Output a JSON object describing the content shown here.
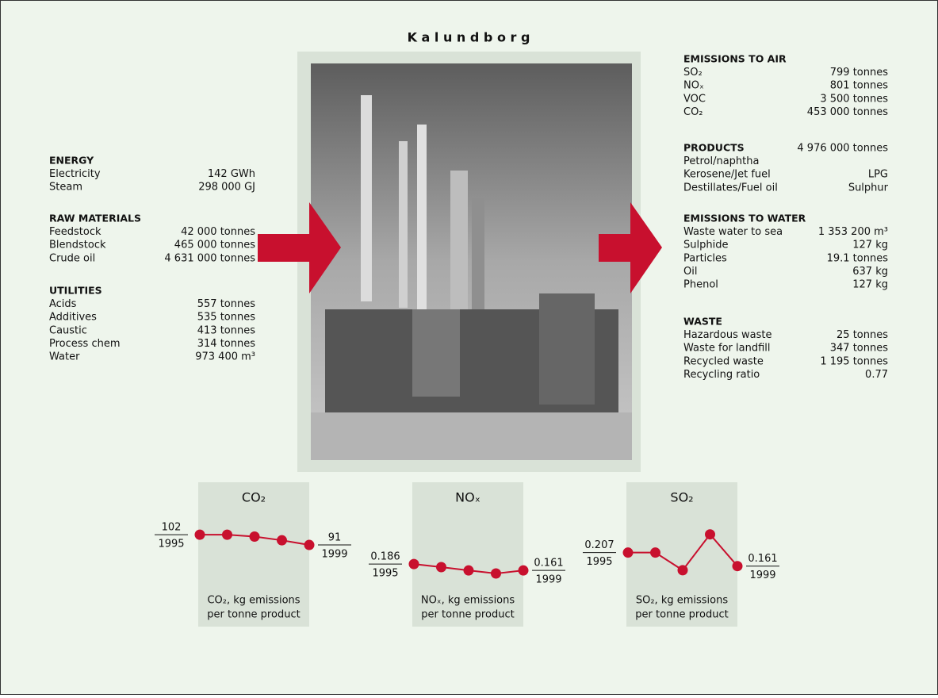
{
  "title": "K a l u n d b o r g",
  "inputs": [
    {
      "title": "ENERGY",
      "rows": [
        [
          "Electricity",
          "142 GWh"
        ],
        [
          "Steam",
          "298 000 GJ"
        ]
      ]
    },
    {
      "title": "RAW MATERIALS",
      "rows": [
        [
          "Feedstock",
          "42 000 tonnes"
        ],
        [
          "Blendstock",
          "465 000 tonnes"
        ],
        [
          "Crude oil",
          "4 631 000 tonnes"
        ]
      ]
    },
    {
      "title": "UTILITIES",
      "rows": [
        [
          "Acids",
          "557 tonnes"
        ],
        [
          "Additives",
          "535 tonnes"
        ],
        [
          "Caustic",
          "413 tonnes"
        ],
        [
          "Process chem",
          "314 tonnes"
        ],
        [
          "Water",
          "973 400 m³"
        ]
      ]
    }
  ],
  "outputs": [
    {
      "title": "EMISSIONS TO AIR",
      "rows": [
        [
          "SO₂",
          "799 tonnes"
        ],
        [
          "NOₓ",
          "801 tonnes"
        ],
        [
          "VOC",
          "3 500 tonnes"
        ],
        [
          "CO₂",
          "453 000 tonnes"
        ]
      ]
    },
    {
      "title": "PRODUCTS",
      "value": "4 976 000 tonnes",
      "rows": [
        [
          "Petrol/naphtha"
        ],
        [
          "Kerosene/Jet fuel",
          "LPG"
        ],
        [
          "Destillates/Fuel oil",
          "Sulphur"
        ]
      ]
    },
    {
      "title": "EMISSIONS TO WATER",
      "rows": [
        [
          "Waste water to sea",
          "1 353 200 m³"
        ],
        [
          "Sulphide",
          "127 kg"
        ],
        [
          "Particles",
          "19.1 tonnes"
        ],
        [
          "Oil",
          "637 kg"
        ],
        [
          "Phenol",
          "127 kg"
        ]
      ]
    },
    {
      "title": "WASTE",
      "rows": [
        [
          "Hazardous waste",
          "25 tonnes"
        ],
        [
          "Waste for landfill",
          "347 tonnes"
        ],
        [
          "Recycled waste",
          "1 195 tonnes"
        ],
        [
          "Recycling ratio",
          "0.77"
        ]
      ]
    }
  ],
  "chart_data": [
    {
      "type": "line",
      "title": "CO₂",
      "caption": [
        "CO₂, kg emissions",
        "per tonne product"
      ],
      "categories": [
        "1995",
        null,
        null,
        null,
        "1999"
      ],
      "values": [
        102,
        102,
        100,
        96,
        91
      ],
      "color": "#c8102e",
      "ylim": [
        46,
        131
      ]
    },
    {
      "type": "line",
      "title": "NOₓ",
      "caption": [
        "NOₓ, kg emissions",
        "per tonne product"
      ],
      "categories": [
        "1995",
        null,
        null,
        null,
        "1999"
      ],
      "values": [
        0.186,
        0.174,
        0.161,
        0.149,
        0.161
      ],
      "color": "#c8102e",
      "ylim": [
        0.096,
        0.408
      ]
    },
    {
      "type": "line",
      "title": "SO₂",
      "caption": [
        "SO₂, kg emissions",
        "per tonne product"
      ],
      "categories": [
        "1995",
        null,
        null,
        null,
        "1999"
      ],
      "values": [
        0.207,
        0.207,
        0.147,
        0.269,
        0.161
      ],
      "color": "#c8102e",
      "ylim": [
        0.09,
        0.36
      ]
    }
  ]
}
